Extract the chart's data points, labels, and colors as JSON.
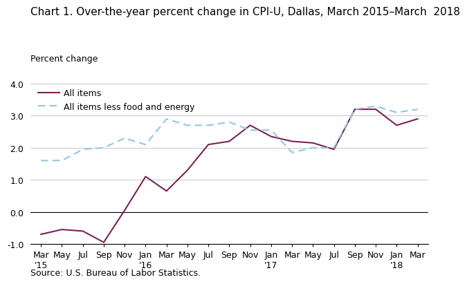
{
  "title": "Chart 1. Over-the-year percent change in CPI-U, Dallas, March 2015–March  2018",
  "ylabel": "Percent change",
  "source": "Source: U.S. Bureau of Labor Statistics.",
  "ylim": [
    -1.0,
    4.0
  ],
  "yticks": [
    -1.0,
    0.0,
    1.0,
    2.0,
    3.0,
    4.0
  ],
  "x_labels": [
    "Mar\n'15",
    "May",
    "Jul",
    "Sep",
    "Nov",
    "Jan\n'16",
    "Mar",
    "May",
    "Jul",
    "Sep",
    "Nov",
    "Jan\n'17",
    "Mar",
    "May",
    "Jul",
    "Sep",
    "Nov",
    "Jan\n'18",
    "Mar"
  ],
  "all_items": [
    -0.7,
    -0.55,
    -0.6,
    -0.95,
    0.05,
    1.1,
    0.65,
    1.3,
    2.1,
    2.2,
    2.7,
    2.35,
    2.2,
    2.15,
    1.95,
    3.2,
    3.2,
    2.7,
    2.9
  ],
  "all_items_less": [
    1.6,
    1.6,
    1.95,
    2.0,
    2.3,
    2.1,
    2.9,
    2.7,
    2.7,
    2.8,
    2.55,
    2.55,
    1.85,
    2.0,
    2.0,
    3.2,
    3.3,
    3.1,
    3.2
  ],
  "all_items_color": "#7B2255",
  "all_items_less_color": "#93C6E0",
  "line_width": 1.5,
  "grid_color": "#cccccc",
  "background_color": "#ffffff",
  "title_fontsize": 11,
  "label_fontsize": 9,
  "tick_fontsize": 9
}
